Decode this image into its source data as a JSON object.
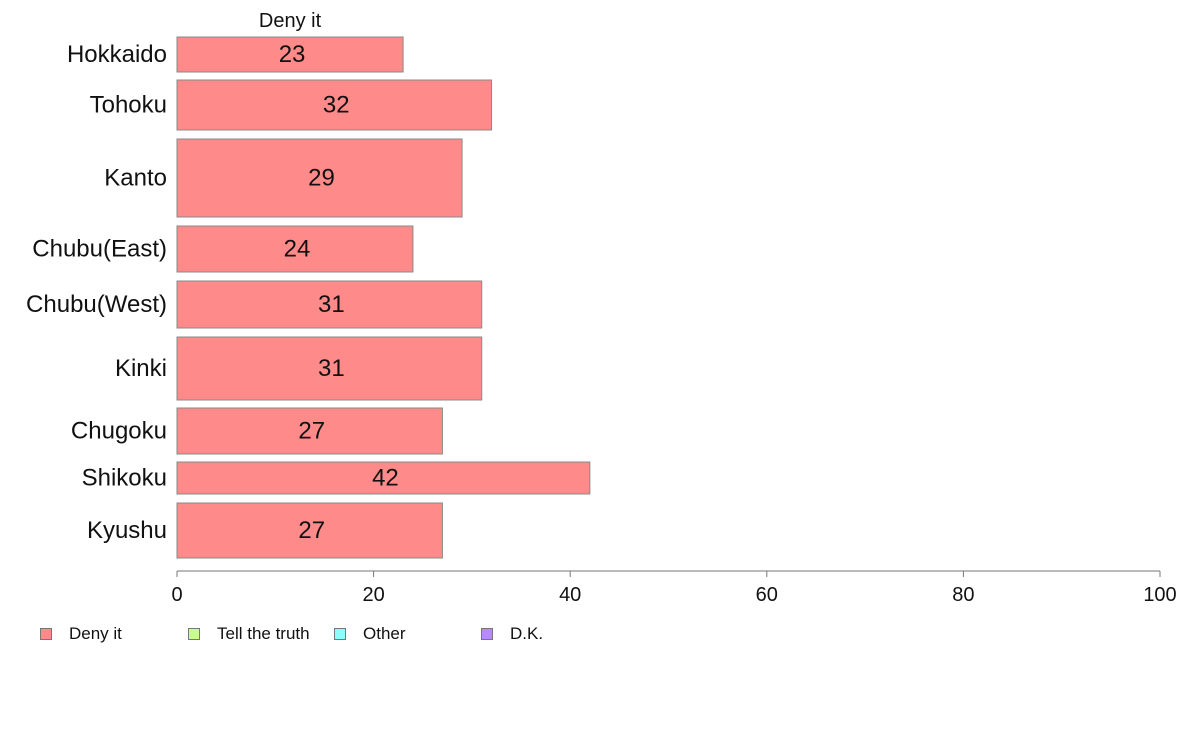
{
  "chart_data": {
    "type": "bar",
    "orientation": "horizontal",
    "title": "Deny it",
    "categories": [
      "Hokkaido",
      "Tohoku",
      "Kanto",
      "Chubu(East)",
      "Chubu(West)",
      "Kinki",
      "Chugoku",
      "Shikoku",
      "Kyushu"
    ],
    "series": [
      {
        "name": "Deny it",
        "values": [
          23,
          32,
          29,
          24,
          31,
          31,
          27,
          42,
          27
        ],
        "color": "#ff8a8a"
      }
    ],
    "xlim": [
      0,
      100
    ],
    "xticks": [
      "0",
      "20",
      "40",
      "60",
      "80",
      "100"
    ],
    "grid": false,
    "legend_position": "bottom"
  },
  "legend": [
    {
      "label": "Deny it",
      "color": "#ff8a8a"
    },
    {
      "label": "Tell the truth",
      "color": "#c6ff8a"
    },
    {
      "label": "Other",
      "color": "#8affff"
    },
    {
      "label": "D.K.",
      "color": "#b88aff"
    }
  ]
}
